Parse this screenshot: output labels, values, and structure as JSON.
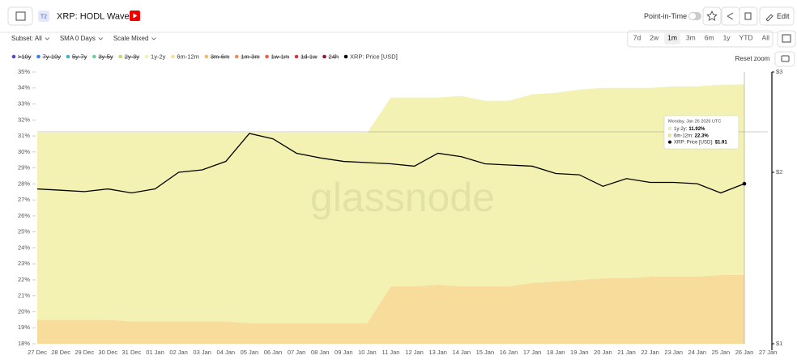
{
  "ui": {
    "badge": "T2",
    "point_in_time": "Point-in-Time",
    "edit": "Edit",
    "controls": [
      "Subset: All",
      "SMA 0 Days",
      "Scale Mixed"
    ],
    "ranges": [
      "7d",
      "2w",
      "1m",
      "3m",
      "6m",
      "1y",
      "YTD",
      "All"
    ],
    "reset_zoom": "Reset zoom",
    "watermark": "glassnode"
  },
  "chart_data": {
    "type": "hodl-waves",
    "title": "XRP: HODL Waves",
    "categories": [
      "27 Dec",
      "28 Dec",
      "29 Dec",
      "30 Dec",
      "31 Dec",
      "01 Jan",
      "02 Jan",
      "03 Jan",
      "04 Jan",
      "05 Jan",
      "06 Jan",
      "07 Jan",
      "08 Jan",
      "09 Jan",
      "10 Jan",
      "11 Jan",
      "12 Jan",
      "13 Jan",
      "14 Jan",
      "15 Jan",
      "16 Jan",
      "17 Jan",
      "18 Jan",
      "19 Jan",
      "20 Jan",
      "21 Jan",
      "22 Jan",
      "23 Jan",
      "24 Jan",
      "25 Jan",
      "26 Jan",
      "27 Jan"
    ],
    "ylim": [
      18,
      35
    ],
    "yticks": [
      {
        "value": 18,
        "label": "18%"
      },
      {
        "value": 19,
        "label": "19%"
      },
      {
        "value": 20,
        "label": "20%"
      },
      {
        "value": 21,
        "label": "21%"
      },
      {
        "value": 22,
        "label": "22%"
      },
      {
        "value": 23,
        "label": "23%"
      },
      {
        "value": 24,
        "label": "24%"
      },
      {
        "value": 25,
        "label": "25%"
      },
      {
        "value": 26,
        "label": "26%"
      },
      {
        "value": 27,
        "label": "27%"
      },
      {
        "value": 28,
        "label": "28%"
      },
      {
        "value": 29,
        "label": "29%"
      },
      {
        "value": 30,
        "label": "30%"
      },
      {
        "value": 31,
        "label": "31%"
      },
      {
        "value": 32,
        "label": "32%"
      },
      {
        "value": 33,
        "label": "33%"
      },
      {
        "value": 34,
        "label": "34%"
      },
      {
        "value": 35,
        "label": "35%"
      }
    ],
    "y2lim": [
      1,
      3
    ],
    "y2scale": "log",
    "y2ticks": [
      {
        "value": 1,
        "label": "$1"
      },
      {
        "value": 2,
        "label": "$2"
      },
      {
        "value": 3,
        "label": "$3"
      }
    ],
    "grid": false,
    "stacked": true,
    "series": [
      {
        "name": ">10y",
        "color": "#4b4fc6",
        "visible": false
      },
      {
        "name": "7y-10y",
        "color": "#3d7fe0",
        "visible": false
      },
      {
        "name": "5y-7y",
        "color": "#3cb4c6",
        "visible": false
      },
      {
        "name": "3y-5y",
        "color": "#6ccf98",
        "visible": false
      },
      {
        "name": "2y-3y",
        "color": "#b8dc6a",
        "visible": false
      },
      {
        "name": "1y-2y",
        "color": "#f3f2b2",
        "visible": true,
        "layer": 1,
        "values": [
          11.7,
          11.7,
          11.7,
          11.7,
          11.8,
          11.8,
          11.8,
          11.8,
          11.8,
          11.9,
          11.9,
          11.9,
          11.9,
          11.9,
          11.9,
          11.8,
          11.8,
          11.7,
          11.9,
          11.6,
          11.6,
          11.8,
          11.8,
          11.9,
          11.9,
          11.9,
          11.8,
          11.9,
          11.9,
          11.9,
          11.92,
          null
        ]
      },
      {
        "name": "6m-12m",
        "color": "#f8dc9c",
        "visible": true,
        "layer": 0,
        "values": [
          19.5,
          19.5,
          19.5,
          19.5,
          19.4,
          19.4,
          19.4,
          19.4,
          19.4,
          19.3,
          19.3,
          19.3,
          19.3,
          19.3,
          19.3,
          21.6,
          21.6,
          21.7,
          21.6,
          21.6,
          21.6,
          21.8,
          21.9,
          22.0,
          22.1,
          22.1,
          22.2,
          22.2,
          22.2,
          22.3,
          22.3,
          null
        ]
      },
      {
        "name": "3m-6m",
        "color": "#f5b86a",
        "visible": false
      },
      {
        "name": "1m-3m",
        "color": "#f08a4b",
        "visible": false
      },
      {
        "name": "1w-1m",
        "color": "#e8604a",
        "visible": false
      },
      {
        "name": "1d-1w",
        "color": "#d63a3a",
        "visible": false
      },
      {
        "name": "24h",
        "color": "#a01030",
        "visible": false
      },
      {
        "name": "XRP: Price [USD]",
        "color": "#000000",
        "visible": true,
        "axis": "y2",
        "values": [
          1.87,
          1.86,
          1.85,
          1.87,
          1.84,
          1.87,
          2.0,
          2.02,
          2.09,
          2.34,
          2.29,
          2.16,
          2.12,
          2.09,
          2.08,
          2.07,
          2.05,
          2.16,
          2.13,
          2.07,
          2.06,
          2.05,
          1.99,
          1.98,
          1.89,
          1.95,
          1.92,
          1.92,
          1.91,
          1.84,
          1.91,
          null
        ]
      }
    ],
    "tooltip": {
      "date": "Monday, Jan 26 2026 UTC",
      "rows": [
        "1y-2y:",
        "6m-12m:",
        "XRP: Price [USD]:"
      ],
      "values": [
        "11.92%",
        "22.3%",
        "$1.91"
      ]
    }
  }
}
